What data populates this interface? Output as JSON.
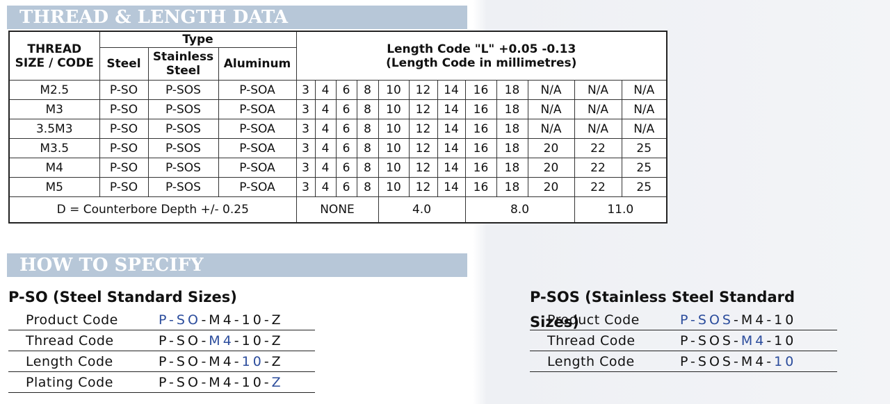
{
  "thread_section": {
    "banner": "THREAD & LENGTH DATA",
    "headers": {
      "thread": [
        "THREAD",
        "SIZE / CODE"
      ],
      "type": "Type",
      "steel": "Steel",
      "stainless": "Stainless Steel",
      "aluminum": "Aluminum",
      "length": [
        "Length Code \"L\" +0.05 -0.13",
        "(Length Code in millimetres)"
      ]
    },
    "rows": [
      {
        "size": "M2.5",
        "steel": "P-SO",
        "stainless": "P-SOS",
        "aluminum": "P-SOA",
        "lengths": [
          3,
          4,
          6,
          8,
          10,
          12,
          14,
          16,
          18,
          "N/A",
          "N/A",
          "N/A"
        ]
      },
      {
        "size": "M3",
        "steel": "P-SO",
        "stainless": "P-SOS",
        "aluminum": "P-SOA",
        "lengths": [
          3,
          4,
          6,
          8,
          10,
          12,
          14,
          16,
          18,
          "N/A",
          "N/A",
          "N/A"
        ]
      },
      {
        "size": "3.5M3",
        "steel": "P-SO",
        "stainless": "P-SOS",
        "aluminum": "P-SOA",
        "lengths": [
          3,
          4,
          6,
          8,
          10,
          12,
          14,
          16,
          18,
          "N/A",
          "N/A",
          "N/A"
        ]
      },
      {
        "size": "M3.5",
        "steel": "P-SO",
        "stainless": "P-SOS",
        "aluminum": "P-SOA",
        "lengths": [
          3,
          4,
          6,
          8,
          10,
          12,
          14,
          16,
          18,
          20,
          22,
          25
        ]
      },
      {
        "size": "M4",
        "steel": "P-SO",
        "stainless": "P-SOS",
        "aluminum": "P-SOA",
        "lengths": [
          3,
          4,
          6,
          8,
          10,
          12,
          14,
          16,
          18,
          20,
          22,
          25
        ]
      },
      {
        "size": "M5",
        "steel": "P-SO",
        "stainless": "P-SOS",
        "aluminum": "P-SOA",
        "lengths": [
          3,
          4,
          6,
          8,
          10,
          12,
          14,
          16,
          18,
          20,
          22,
          25
        ]
      }
    ],
    "depth": {
      "label": "D = Counterbore Depth +/- 0.25",
      "values": [
        "NONE",
        "4.0",
        "8.0",
        "11.0"
      ]
    }
  },
  "specify_section": {
    "banner": "HOW TO SPECIFY",
    "specs": [
      {
        "title": "P-SO (Steel Standard Sizes)",
        "rows": [
          {
            "label": "Product Code",
            "segments": [
              "P-SO",
              "-M4-10-Z"
            ],
            "highlight": 0
          },
          {
            "label": "Thread Code",
            "segments": [
              "P-SO-",
              "M4",
              "-10-Z"
            ],
            "highlight": 1
          },
          {
            "label": "Length Code",
            "segments": [
              "P-SO-M4-",
              "10",
              "-Z"
            ],
            "highlight": 1
          },
          {
            "label": "Plating Code",
            "segments": [
              "P-SO-M4-10-",
              "Z"
            ],
            "highlight": 1
          }
        ]
      },
      {
        "title": "P-SOS (Stainless Steel Standard Sizes)",
        "rows": [
          {
            "label": "Product Code",
            "segments": [
              "P-SOS",
              "-M4-10"
            ],
            "highlight": 0
          },
          {
            "label": "Thread Code",
            "segments": [
              "P-SOS-",
              "M4",
              "-10"
            ],
            "highlight": 1
          },
          {
            "label": "Length Code",
            "segments": [
              "P-SOS-M4-",
              "10"
            ],
            "highlight": 1
          }
        ]
      }
    ]
  }
}
